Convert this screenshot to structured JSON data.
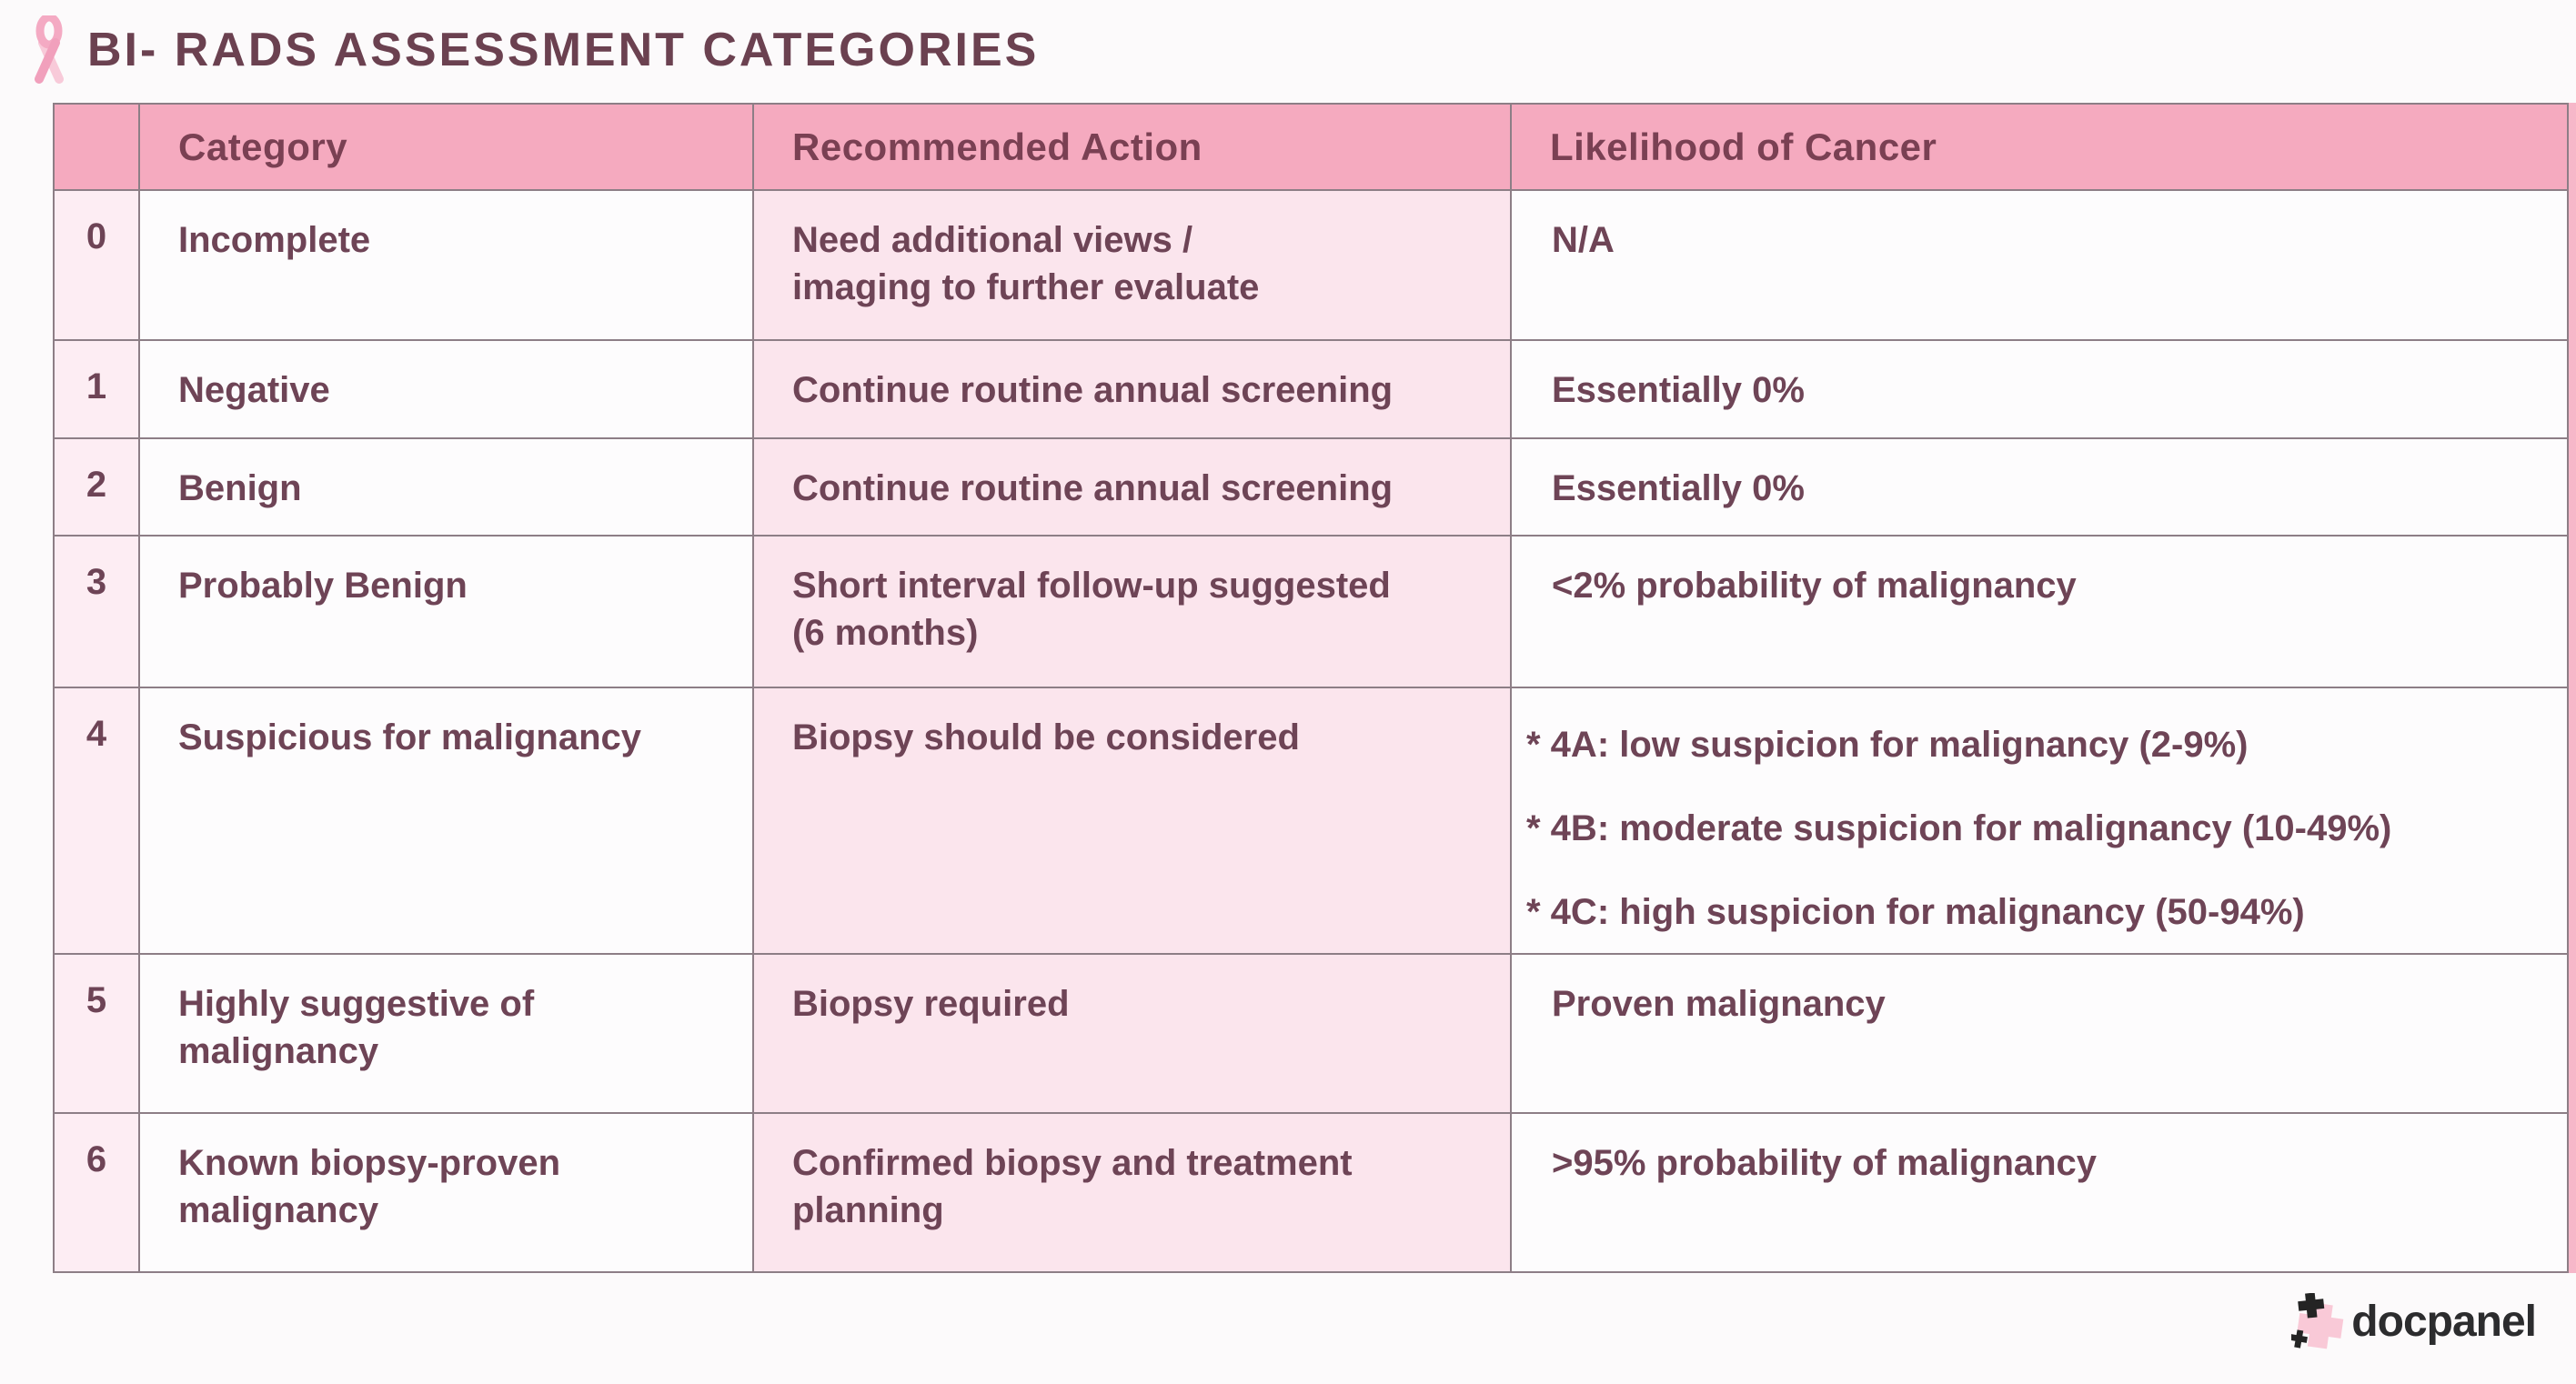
{
  "page": {
    "title": "BI- RADS ASSESSMENT CATEGORIES",
    "ribbon_icon": "awareness-ribbon-icon"
  },
  "table": {
    "headers": [
      "",
      "Category",
      "Recommended Action",
      "Likelihood of Cancer"
    ],
    "rows": [
      {
        "id": "0",
        "category_lines": [
          "Incomplete"
        ],
        "action_lines": [
          "Need additional views /",
          "imaging to further evaluate"
        ],
        "likelihood_lines": [
          "N/A"
        ]
      },
      {
        "id": "1",
        "category_lines": [
          "Negative"
        ],
        "action_lines": [
          "Continue routine annual screening"
        ],
        "likelihood_lines": [
          "Essentially 0%"
        ]
      },
      {
        "id": "2",
        "category_lines": [
          "Benign"
        ],
        "action_lines": [
          "Continue routine annual screening"
        ],
        "likelihood_lines": [
          "Essentially 0%"
        ]
      },
      {
        "id": "3",
        "category_lines": [
          "Probably Benign"
        ],
        "action_lines": [
          "Short interval follow-up suggested",
          "(6 months)"
        ],
        "likelihood_lines": [
          "<2% probability of malignancy"
        ]
      },
      {
        "id": "4",
        "category_lines": [
          "Suspicious for malignancy"
        ],
        "action_lines": [
          "Biopsy should be considered"
        ],
        "likelihood_lines": [
          "* 4A: low suspicion for malignancy (2-9%)",
          "* 4B: moderate suspicion for malignancy (10-49%)",
          "* 4C: high suspicion for malignancy (50-94%)"
        ]
      },
      {
        "id": "5",
        "category_lines": [
          "Highly suggestive of",
          "malignancy"
        ],
        "action_lines": [
          "Biopsy required"
        ],
        "likelihood_lines": [
          "Proven malignancy"
        ]
      },
      {
        "id": "6",
        "category_lines": [
          "Known biopsy-proven",
          "malignancy"
        ],
        "action_lines": [
          "Confirmed biopsy and treatment",
          "planning"
        ],
        "likelihood_lines": [
          ">95% probability of malignancy"
        ]
      }
    ]
  },
  "footer": {
    "logo_text": "docpanel",
    "logo_icon": "docpanel-plus-icon"
  },
  "colors": {
    "header_bg": "#f5aabf",
    "action_cell_pink": "#fbe5ed",
    "number_cell_pink": "#fdedf3",
    "white_cell": "#fdfcfd",
    "text_plum": "#6e4456",
    "grid_line": "#8d7e86",
    "table_right_edge": "#f6b7c9",
    "logo_pink": "#f9c9d7",
    "logo_dark": "#2c2c2e"
  }
}
